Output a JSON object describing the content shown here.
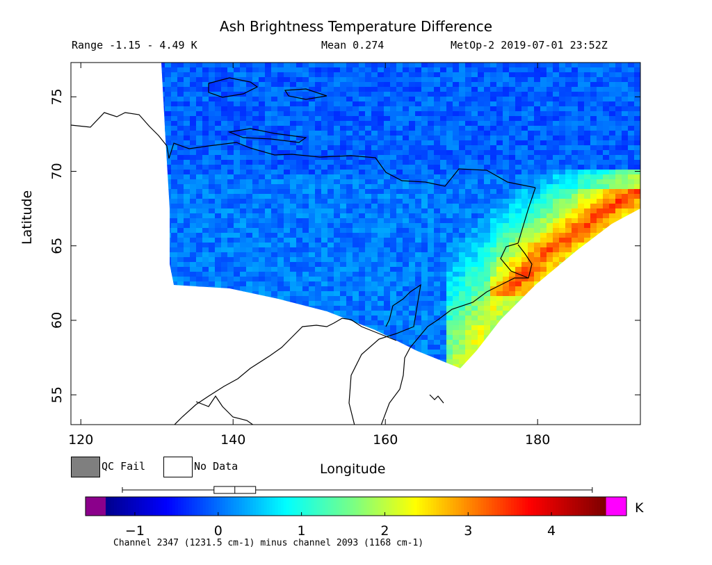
{
  "chart_data": {
    "type": "heatmap",
    "title": "Ash Brightness Temperature Difference",
    "range_text": "Range -1.15 - 4.49 K",
    "mean_text": "Mean 0.274",
    "satellite_text": "MetOp-2 2019-07-01 23:52Z",
    "xlabel": "Longitude",
    "ylabel": "Latitude",
    "x_ticks": [
      120,
      140,
      160,
      180
    ],
    "y_ticks": [
      55,
      60,
      65,
      70,
      75
    ],
    "xlim": [
      118.7,
      193.5
    ],
    "ylim": [
      53.0,
      77.3
    ],
    "range": [
      -1.15,
      4.49
    ],
    "mean": 0.274,
    "colorbar": {
      "ticks": [
        -1,
        0,
        1,
        2,
        3,
        4
      ],
      "min": -1.35,
      "max": 4.65,
      "unit": "K",
      "under_color": "#8b008b",
      "over_color": "#ff00ff",
      "boxplot": {
        "min": -1.15,
        "q1": -0.05,
        "median": 0.2,
        "q3": 0.45,
        "max": 4.49
      }
    },
    "swath_high_band": "values 1.5 - 4.5 K along the south-eastern swath edge near 175-190 E, 62-68 N",
    "swath_background": "values -0.5 - 0.5 K elsewhere",
    "grid": true,
    "legend": [
      {
        "label": "QC Fail",
        "color": "#7f7f7f"
      },
      {
        "label": "No Data",
        "color": "#ffffff"
      }
    ],
    "footnote": "Channel 2347 (1231.5 cm-1) minus channel 2093 (1168 cm-1)"
  }
}
